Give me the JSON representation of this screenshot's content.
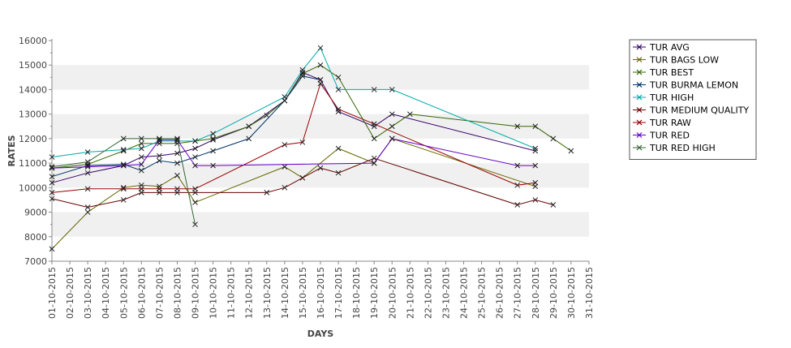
{
  "chart_data": {
    "type": "line",
    "title": "",
    "xlabel": "DAYS",
    "ylabel": "RATES",
    "ylim": [
      7000,
      16000
    ],
    "yticks": [
      7000,
      8000,
      9000,
      10000,
      11000,
      12000,
      13000,
      14000,
      15000,
      16000
    ],
    "x_domain": [
      "01-10-2015",
      "31-10-2015"
    ],
    "categories": [
      "01-10-2015",
      "02-10-2015",
      "03-10-2015",
      "04-10-2015",
      "05-10-2015",
      "06-10-2015",
      "07-10-2015",
      "08-10-2015",
      "09-10-2015",
      "10-10-2015",
      "11-10-2015",
      "12-10-2015",
      "13-10-2015",
      "14-10-2015",
      "15-10-2015",
      "16-10-2015",
      "17-10-2015",
      "18-10-2015",
      "19-10-2015",
      "20-10-2015",
      "21-10-2015",
      "22-10-2015",
      "23-10-2015",
      "24-10-2015",
      "25-10-2015",
      "26-10-2015",
      "27-10-2015",
      "28-10-2015",
      "29-10-2015",
      "30-10-2015",
      "31-10-2015"
    ],
    "grid": "alternating horizontal bands",
    "legend_position": "right",
    "series": [
      {
        "name": "TUR AVG",
        "color": "#330066",
        "points": [
          [
            "01-10-2015",
            10200
          ],
          [
            "03-10-2015",
            10600
          ],
          [
            "05-10-2015",
            10900
          ],
          [
            "06-10-2015",
            11250
          ],
          [
            "07-10-2015",
            11300
          ],
          [
            "08-10-2015",
            11400
          ],
          [
            "09-10-2015",
            11600
          ],
          [
            "10-10-2015",
            11950
          ],
          [
            "12-10-2015",
            12500
          ],
          [
            "14-10-2015",
            13550
          ],
          [
            "15-10-2015",
            14700
          ],
          [
            "16-10-2015",
            14400
          ],
          [
            "17-10-2015",
            13100
          ],
          [
            "19-10-2015",
            12500
          ],
          [
            "20-10-2015",
            13000
          ],
          [
            "28-10-2015",
            11500
          ]
        ]
      },
      {
        "name": "TUR BAGS LOW",
        "color": "#666600",
        "points": [
          [
            "01-10-2015",
            7500
          ],
          [
            "03-10-2015",
            9000
          ],
          [
            "05-10-2015",
            10000
          ],
          [
            "06-10-2015",
            10100
          ],
          [
            "07-10-2015",
            10050
          ],
          [
            "08-10-2015",
            10500
          ],
          [
            "09-10-2015",
            9400
          ],
          [
            "14-10-2015",
            10850
          ],
          [
            "15-10-2015",
            10400
          ],
          [
            "17-10-2015",
            11600
          ],
          [
            "19-10-2015",
            11000
          ],
          [
            "20-10-2015",
            12000
          ],
          [
            "28-10-2015",
            10050
          ]
        ]
      },
      {
        "name": "TUR BEST",
        "color": "#336600",
        "points": [
          [
            "01-10-2015",
            10800
          ],
          [
            "03-10-2015",
            10950
          ],
          [
            "05-10-2015",
            11500
          ],
          [
            "06-10-2015",
            11800
          ],
          [
            "07-10-2015",
            11800
          ],
          [
            "08-10-2015",
            11800
          ],
          [
            "09-10-2015",
            11900
          ],
          [
            "10-10-2015",
            12000
          ],
          [
            "12-10-2015",
            12500
          ],
          [
            "13-10-2015",
            12950
          ],
          [
            "14-10-2015",
            13550
          ],
          [
            "15-10-2015",
            14650
          ],
          [
            "16-10-2015",
            15000
          ],
          [
            "17-10-2015",
            14500
          ],
          [
            "19-10-2015",
            12000
          ],
          [
            "20-10-2015",
            12500
          ],
          [
            "21-10-2015",
            13000
          ],
          [
            "27-10-2015",
            12500
          ],
          [
            "28-10-2015",
            12500
          ],
          [
            "29-10-2015",
            12000
          ],
          [
            "30-10-2015",
            11500
          ]
        ]
      },
      {
        "name": "TUR BURMA LEMON",
        "color": "#003366",
        "points": [
          [
            "01-10-2015",
            10450
          ],
          [
            "03-10-2015",
            10900
          ],
          [
            "05-10-2015",
            10950
          ],
          [
            "06-10-2015",
            10700
          ],
          [
            "07-10-2015",
            11100
          ],
          [
            "08-10-2015",
            11000
          ],
          [
            "09-10-2015",
            11250
          ],
          [
            "10-10-2015",
            11500
          ],
          [
            "12-10-2015",
            12000
          ],
          [
            "14-10-2015",
            13550
          ],
          [
            "15-10-2015",
            14550
          ],
          [
            "16-10-2015",
            14400
          ]
        ]
      },
      {
        "name": "TUR HIGH",
        "color": "#00AAAA",
        "points": [
          [
            "01-10-2015",
            11250
          ],
          [
            "03-10-2015",
            11450
          ],
          [
            "05-10-2015",
            11550
          ],
          [
            "06-10-2015",
            11600
          ],
          [
            "07-10-2015",
            11900
          ],
          [
            "08-10-2015",
            11900
          ],
          [
            "09-10-2015",
            11900
          ],
          [
            "10-10-2015",
            12200
          ],
          [
            "14-10-2015",
            13700
          ],
          [
            "15-10-2015",
            14800
          ],
          [
            "16-10-2015",
            15700
          ],
          [
            "17-10-2015",
            14000
          ],
          [
            "19-10-2015",
            14000
          ],
          [
            "20-10-2015",
            14000
          ],
          [
            "28-10-2015",
            11600
          ]
        ]
      },
      {
        "name": "TUR MEDIUM QUALITY",
        "color": "#660000",
        "points": [
          [
            "01-10-2015",
            9550
          ],
          [
            "03-10-2015",
            9200
          ],
          [
            "05-10-2015",
            9500
          ],
          [
            "06-10-2015",
            9800
          ],
          [
            "07-10-2015",
            9800
          ],
          [
            "08-10-2015",
            9800
          ],
          [
            "09-10-2015",
            9800
          ],
          [
            "13-10-2015",
            9800
          ],
          [
            "14-10-2015",
            10000
          ],
          [
            "16-10-2015",
            10800
          ],
          [
            "17-10-2015",
            10600
          ],
          [
            "19-10-2015",
            11200
          ],
          [
            "27-10-2015",
            9300
          ],
          [
            "28-10-2015",
            9500
          ],
          [
            "29-10-2015",
            9300
          ]
        ]
      },
      {
        "name": "TUR RAW",
        "color": "#990000",
        "points": [
          [
            "01-10-2015",
            9800
          ],
          [
            "03-10-2015",
            9950
          ],
          [
            "05-10-2015",
            9950
          ],
          [
            "06-10-2015",
            9950
          ],
          [
            "07-10-2015",
            9950
          ],
          [
            "08-10-2015",
            9950
          ],
          [
            "09-10-2015",
            9950
          ],
          [
            "14-10-2015",
            11750
          ],
          [
            "15-10-2015",
            11850
          ],
          [
            "16-10-2015",
            14250
          ],
          [
            "17-10-2015",
            13200
          ],
          [
            "19-10-2015",
            12600
          ],
          [
            "27-10-2015",
            10100
          ],
          [
            "28-10-2015",
            10200
          ]
        ]
      },
      {
        "name": "TUR RED",
        "color": "#6600CC",
        "points": [
          [
            "01-10-2015",
            10800
          ],
          [
            "03-10-2015",
            10850
          ],
          [
            "05-10-2015",
            10900
          ],
          [
            "06-10-2015",
            10950
          ],
          [
            "07-10-2015",
            11950
          ],
          [
            "08-10-2015",
            11950
          ],
          [
            "09-10-2015",
            10900
          ],
          [
            "10-10-2015",
            10900
          ],
          [
            "19-10-2015",
            11000
          ],
          [
            "20-10-2015",
            12000
          ],
          [
            "27-10-2015",
            10900
          ],
          [
            "28-10-2015",
            10900
          ]
        ]
      },
      {
        "name": "TUR RED HIGH",
        "color": "#336633",
        "points": [
          [
            "01-10-2015",
            10850
          ],
          [
            "03-10-2015",
            11050
          ],
          [
            "05-10-2015",
            12000
          ],
          [
            "06-10-2015",
            12000
          ],
          [
            "07-10-2015",
            12000
          ],
          [
            "08-10-2015",
            12000
          ],
          [
            "09-10-2015",
            8500
          ]
        ]
      }
    ]
  }
}
